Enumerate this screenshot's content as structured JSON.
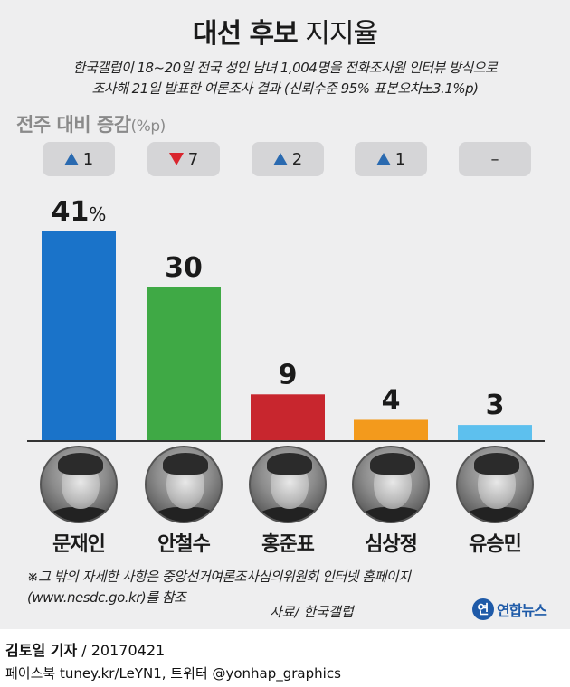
{
  "title": {
    "bold": "대선 후보",
    "normal": "지지율"
  },
  "subtitle": {
    "line1": "한국갤럽이 18~20일 전국 성인 남녀 1,004명을 전화조사원 인터뷰 방식으로",
    "line2": "조사해 21일 발표한 여론조사 결과 (신뢰수준 95% 표본오차±3.1%p)"
  },
  "change_header": {
    "label": "전주 대비 증감",
    "unit": "(%p)"
  },
  "chart_data": {
    "type": "bar",
    "categories": [
      "문재인",
      "안철수",
      "홍준표",
      "심상정",
      "유승민"
    ],
    "values": [
      41,
      30,
      9,
      4,
      3
    ],
    "value_labels": [
      "41",
      "30",
      "9",
      "4",
      "3"
    ],
    "first_label_unit": "%",
    "colors": [
      "#1a73c9",
      "#3fa945",
      "#c8262e",
      "#f39a1c",
      "#5dc0ee"
    ],
    "ylim": [
      0,
      41
    ]
  },
  "changes": [
    {
      "direction": "up",
      "value": "1"
    },
    {
      "direction": "down",
      "value": "7"
    },
    {
      "direction": "up",
      "value": "2"
    },
    {
      "direction": "up",
      "value": "1"
    },
    {
      "direction": "none",
      "value": "–"
    }
  ],
  "note": {
    "line1": "※그 밖의 자세한 사항은 중앙선거여론조사심의위원회 인터넷 홈페이지",
    "line2": "(www.nesdc.go.kr)를 참조"
  },
  "source": "자료/ 한국갤럽",
  "logo": {
    "mark": "연",
    "text": "연합뉴스"
  },
  "reporter": {
    "name": "김토일 기자",
    "rest": " / 20170421"
  },
  "social": "페이스북 tuney.kr/LeYN1, 트위터 @yonhap_graphics"
}
